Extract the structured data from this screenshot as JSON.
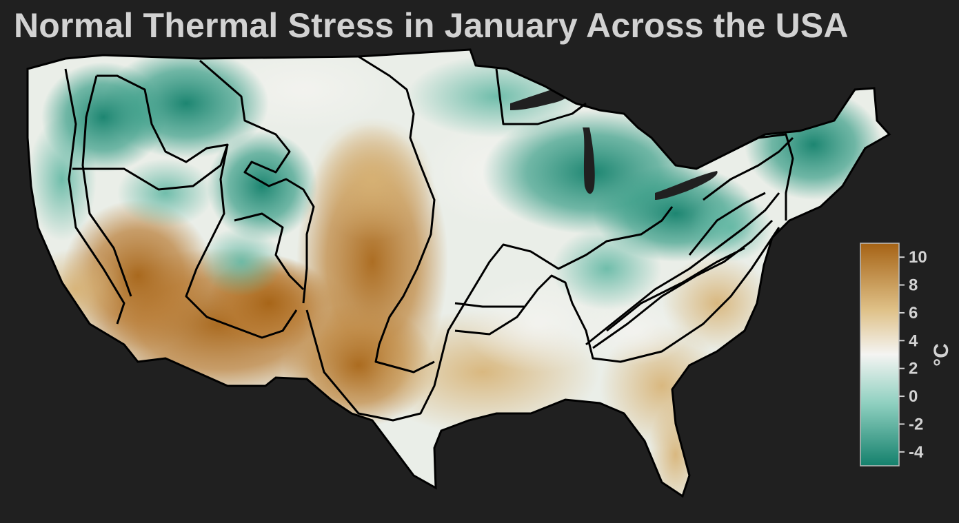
{
  "title": "Normal Thermal Stress in January Across the USA",
  "legend": {
    "unit": "°C",
    "min": -5,
    "max": 11,
    "ticks": [
      {
        "value": 10,
        "label": "10"
      },
      {
        "value": 8,
        "label": "8"
      },
      {
        "value": 6,
        "label": "6"
      },
      {
        "value": 4,
        "label": "4"
      },
      {
        "value": 2,
        "label": "2"
      },
      {
        "value": 0,
        "label": "0"
      },
      {
        "value": -2,
        "label": "-2"
      },
      {
        "value": -4,
        "label": "-4"
      }
    ],
    "colors": {
      "high": "#a66315",
      "mid_high": "#dfc188",
      "mid": "#f4f4f2",
      "mid_low": "#8fd0c0",
      "low": "#14806c"
    }
  },
  "map": {
    "region": "USA",
    "month": "January",
    "border_color": "#000000",
    "background_color": "#202020"
  }
}
